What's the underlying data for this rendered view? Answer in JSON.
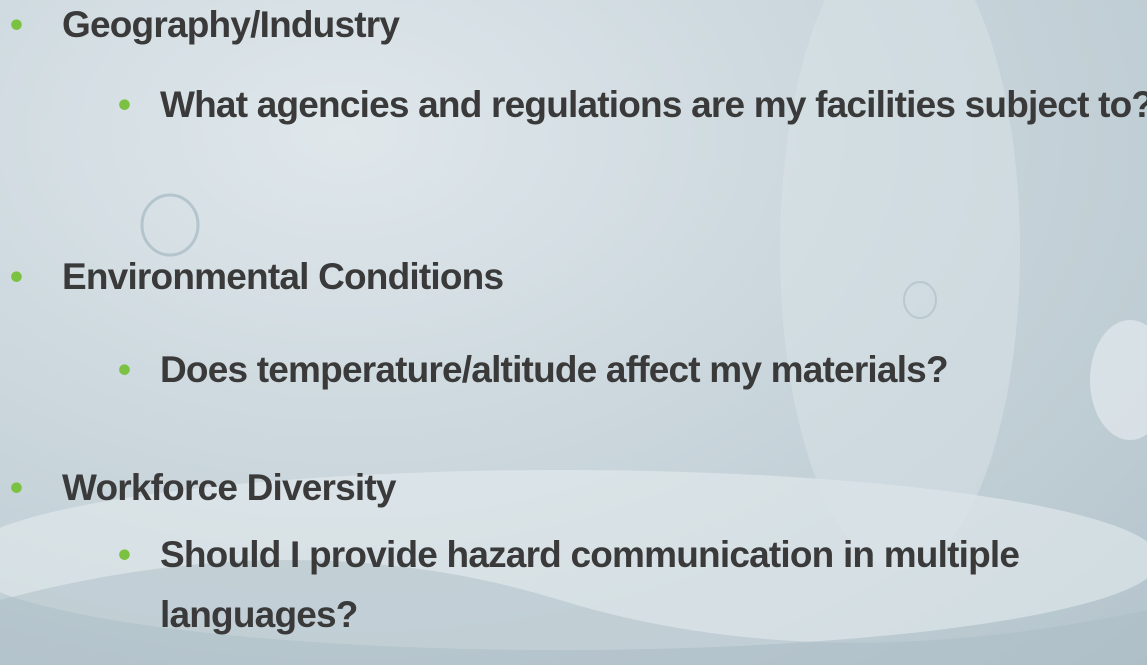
{
  "bullets": [
    {
      "text": "Geography/Industry",
      "children": [
        "What agencies and regulations are my facilities subject to?"
      ]
    },
    {
      "text": "Environmental Conditions",
      "children": [
        "Does temperature/altitude affect my materials?"
      ]
    },
    {
      "text": "Workforce Diversity",
      "children": [
        "Should I provide hazard communication in multiple languages?"
      ]
    }
  ]
}
